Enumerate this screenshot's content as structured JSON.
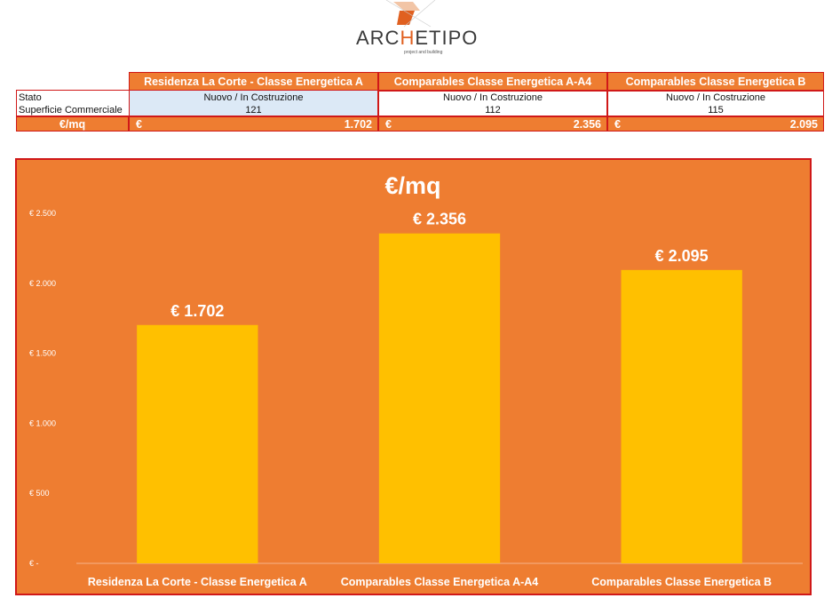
{
  "logo": {
    "text_pre": "ARC",
    "text_accent": "H",
    "text_post": "ETIPO",
    "tagline": "project and building"
  },
  "table": {
    "headers": [
      "Residenza La Corte - Classe Energetica A",
      "Comparables Classe Energetica A-A4",
      "Comparables Classe Energetica B"
    ],
    "stato_label": "Stato",
    "superficie_label": "Superficie Commerciale",
    "price_label": "€/mq",
    "currency": "€",
    "rows": [
      {
        "stato": "Nuovo / In Costruzione",
        "superficie": "121",
        "price": "1.702"
      },
      {
        "stato": "Nuovo / In Costruzione",
        "superficie": "112",
        "price": "2.356"
      },
      {
        "stato": "Nuovo / In Costruzione",
        "superficie": "115",
        "price": "2.095"
      }
    ]
  },
  "chart_data": {
    "type": "bar",
    "title": "€/mq",
    "categories": [
      "Residenza La Corte - Classe Energetica A",
      "Comparables Classe Energetica A-A4",
      "Comparables Classe Energetica B"
    ],
    "values": [
      1702,
      2356,
      2095
    ],
    "data_labels": [
      "€ 1.702",
      "€ 2.356",
      "€ 2.095"
    ],
    "y_ticks": [
      0,
      500,
      1000,
      1500,
      2000,
      2500
    ],
    "y_tick_labels": [
      "€ -",
      "€ 500",
      "€ 1.000",
      "€ 1.500",
      "€ 2.000",
      "€ 2.500"
    ],
    "ylim": [
      0,
      2500
    ],
    "grid": false,
    "legend": false,
    "colors": {
      "background": "#ee7d31",
      "bar": "#ffc000",
      "border": "#d01818",
      "text": "#ffffff",
      "axis": "#f5b48a"
    }
  },
  "colors": {
    "header_bg": "#ee7d31",
    "highlight_cell": "#dce9f6",
    "border": "#d01818"
  }
}
